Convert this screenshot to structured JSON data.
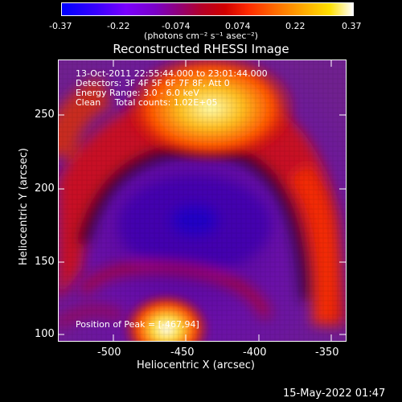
{
  "colorbar": {
    "ticks": [
      "-0.37",
      "-0.22",
      "-0.074",
      "0.074",
      "0.22",
      "0.37"
    ],
    "units": "(photons cm⁻² s⁻¹ asec⁻²)"
  },
  "chart_data": {
    "type": "heatmap",
    "title": "Reconstructed RHESSI Image",
    "xlabel": "Heliocentric X (arcsec)",
    "ylabel": "Heliocentric Y (arcsec)",
    "xlim": [
      -535,
      -345
    ],
    "ylim": [
      95,
      285
    ],
    "xticks": [
      "-500",
      "-450",
      "-400",
      "-350"
    ],
    "yticks": [
      "250",
      "200",
      "150",
      "100"
    ],
    "value_range": [
      -0.37,
      0.37
    ],
    "peak_position": [
      -467,
      94
    ],
    "annotations": [
      "13-Oct-2011 22:55:44.000 to 23:01:44.000",
      "Detectors: 3F 4F 5F 6F 7F 8F, Att 0",
      "Energy Range: 3.0 - 6.0 keV",
      "Clean     Total counts: 1.02E+05"
    ],
    "peak_label": "Position of Peak = [-467,94]"
  },
  "footer": {
    "date": "15-May-2022 01:47"
  }
}
